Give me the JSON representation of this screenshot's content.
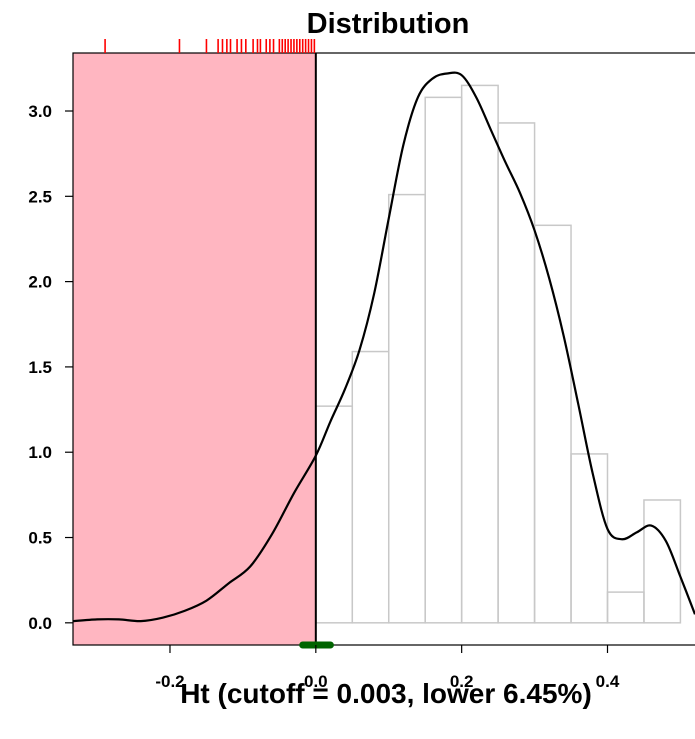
{
  "chart_data": {
    "type": "bar",
    "title": "Distribution",
    "xlabel": "Ht (cutoff = 0.003, lower 6.45%)",
    "ylabel": "",
    "xlim": [
      -0.333,
      0.52
    ],
    "ylim": [
      -0.13,
      3.34
    ],
    "x_ticks": [
      "-0.2",
      "0.0",
      "0.2",
      "0.4"
    ],
    "x_tick_values": [
      -0.2,
      0.0,
      0.2,
      0.4
    ],
    "y_ticks": [
      "0.0",
      "0.5",
      "1.0",
      "1.5",
      "2.0",
      "2.5",
      "3.0"
    ],
    "y_tick_values": [
      0.0,
      0.5,
      1.0,
      1.5,
      2.0,
      2.5,
      3.0
    ],
    "shaded_region": {
      "x_from": -0.333,
      "x_to": 0.0,
      "color": "#ffb6c1"
    },
    "cutoff_line_x": 0.0,
    "histogram": {
      "bin_edges": [
        0.0,
        0.05,
        0.1,
        0.15,
        0.2,
        0.25,
        0.3,
        0.35,
        0.4,
        0.45,
        0.5
      ],
      "heights": [
        1.27,
        1.59,
        2.51,
        3.08,
        3.15,
        2.93,
        2.33,
        0.99,
        0.18,
        0.72
      ],
      "edge_color": "#c8c8c8"
    },
    "density": {
      "x": [
        -0.333,
        -0.3,
        -0.27,
        -0.24,
        -0.21,
        -0.18,
        -0.15,
        -0.12,
        -0.09,
        -0.06,
        -0.03,
        0.0,
        0.02,
        0.04,
        0.06,
        0.08,
        0.1,
        0.12,
        0.14,
        0.16,
        0.18,
        0.2,
        0.22,
        0.24,
        0.26,
        0.28,
        0.3,
        0.32,
        0.34,
        0.36,
        0.38,
        0.4,
        0.42,
        0.44,
        0.46,
        0.48,
        0.5,
        0.52
      ],
      "y": [
        0.01,
        0.02,
        0.02,
        0.01,
        0.03,
        0.07,
        0.13,
        0.23,
        0.33,
        0.52,
        0.76,
        0.98,
        1.18,
        1.37,
        1.6,
        1.93,
        2.37,
        2.8,
        3.08,
        3.19,
        3.22,
        3.21,
        3.08,
        2.89,
        2.7,
        2.52,
        2.3,
        2.02,
        1.68,
        1.28,
        0.87,
        0.55,
        0.49,
        0.53,
        0.57,
        0.48,
        0.27,
        0.05
      ],
      "color": "#000000"
    },
    "rug": {
      "x": [
        -0.289,
        -0.187,
        -0.15,
        -0.134,
        -0.128,
        -0.122,
        -0.117,
        -0.108,
        -0.102,
        -0.096,
        -0.086,
        -0.08,
        -0.076,
        -0.068,
        -0.063,
        -0.058,
        -0.05,
        -0.046,
        -0.042,
        -0.038,
        -0.034,
        -0.03,
        -0.026,
        -0.022,
        -0.018,
        -0.014,
        -0.01,
        -0.006,
        -0.002
      ],
      "color": "#ff0000"
    },
    "interval_marker": {
      "x_from": -0.018,
      "x_to": 0.02,
      "color": "#006400"
    }
  }
}
